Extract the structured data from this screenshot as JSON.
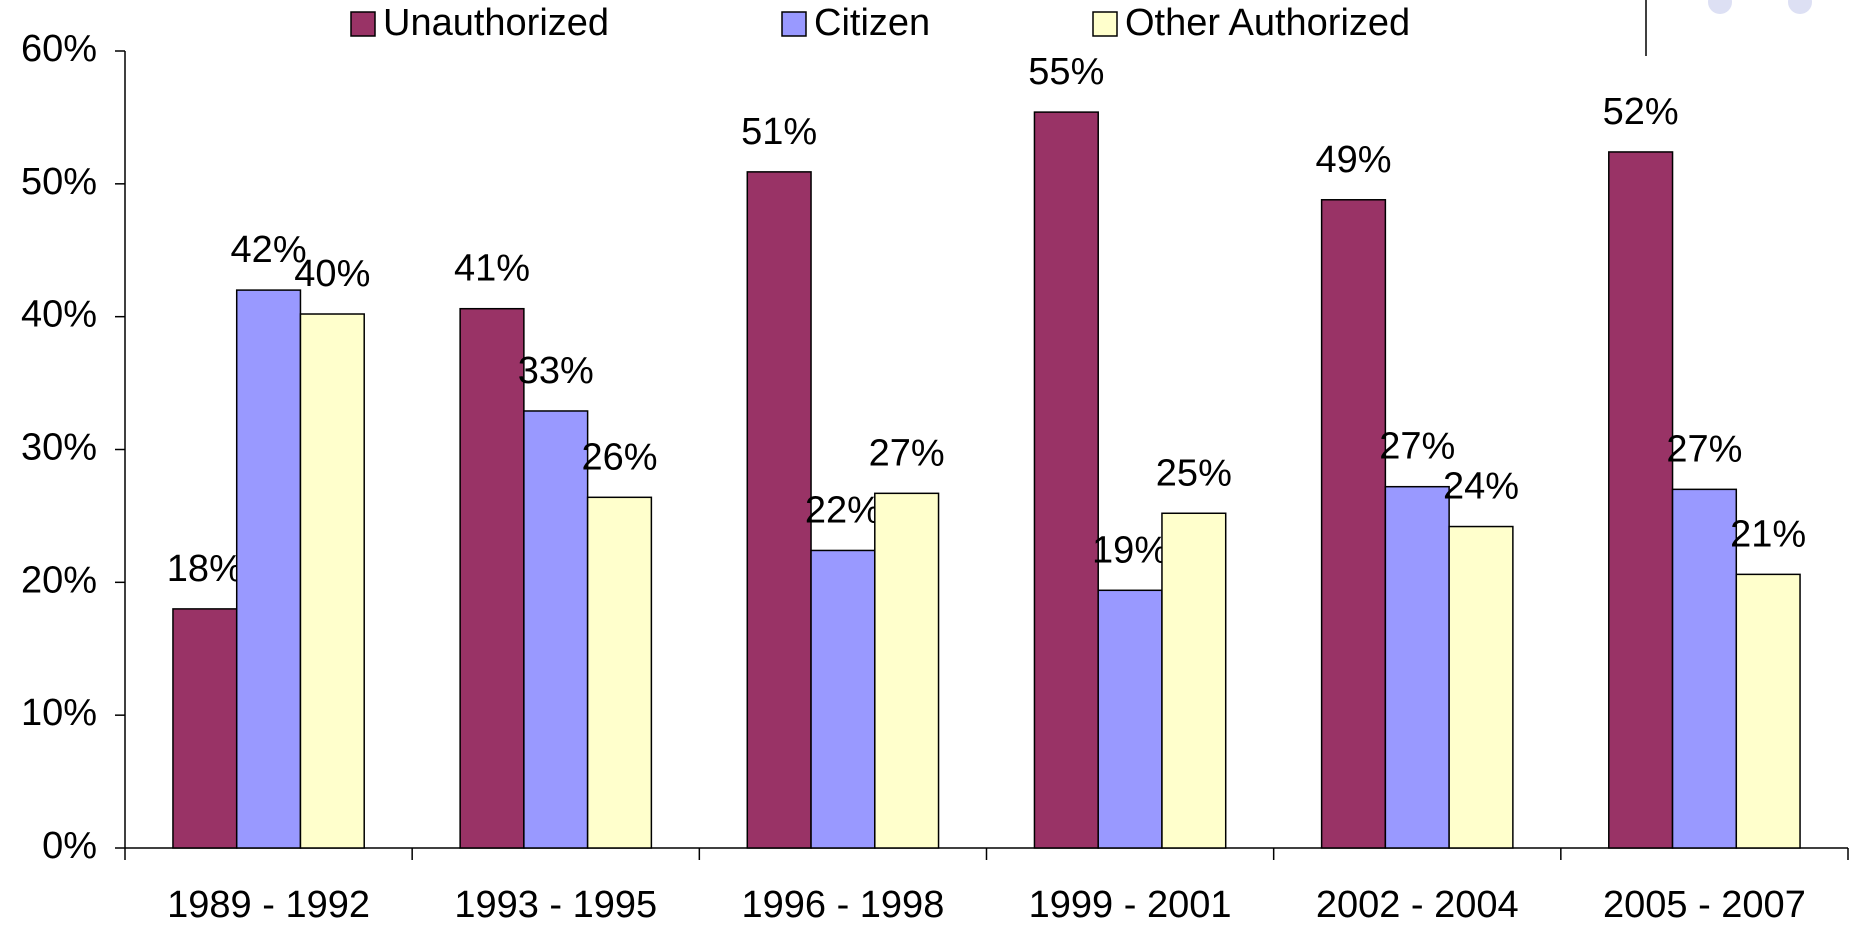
{
  "chart_data": {
    "type": "bar",
    "categories": [
      "1989 - 1992",
      "1993 - 1995",
      "1996 - 1998",
      "1999 - 2001",
      "2002 - 2004",
      "2005 - 2007"
    ],
    "series": [
      {
        "name": "Unauthorized",
        "color": "#993366",
        "values": [
          18,
          40.6,
          50.9,
          55.4,
          48.8,
          52.4
        ],
        "value_labels": [
          "18%",
          "41%",
          "51%",
          "55%",
          "49%",
          "52%"
        ]
      },
      {
        "name": "Citizen",
        "color": "#9999ff",
        "values": [
          42,
          32.9,
          22.4,
          19.4,
          27.2,
          27
        ],
        "value_labels": [
          "42%",
          "33%",
          "22%",
          "19%",
          "27%",
          "27%"
        ]
      },
      {
        "name": "Other Authorized",
        "color": "#ffffcc",
        "values": [
          40.2,
          26.4,
          26.7,
          25.2,
          24.2,
          20.6
        ],
        "value_labels": [
          "40%",
          "26%",
          "27%",
          "25%",
          "24%",
          "21%"
        ]
      }
    ],
    "ylim": [
      0,
      60
    ],
    "yticks": [
      {
        "value": 0,
        "label": "0%"
      },
      {
        "value": 10,
        "label": "10%"
      },
      {
        "value": 20,
        "label": "20%"
      },
      {
        "value": 30,
        "label": "30%"
      },
      {
        "value": 40,
        "label": "40%"
      },
      {
        "value": 50,
        "label": "50%"
      },
      {
        "value": 60,
        "label": "60%"
      }
    ],
    "grid": false,
    "legend": "top"
  }
}
